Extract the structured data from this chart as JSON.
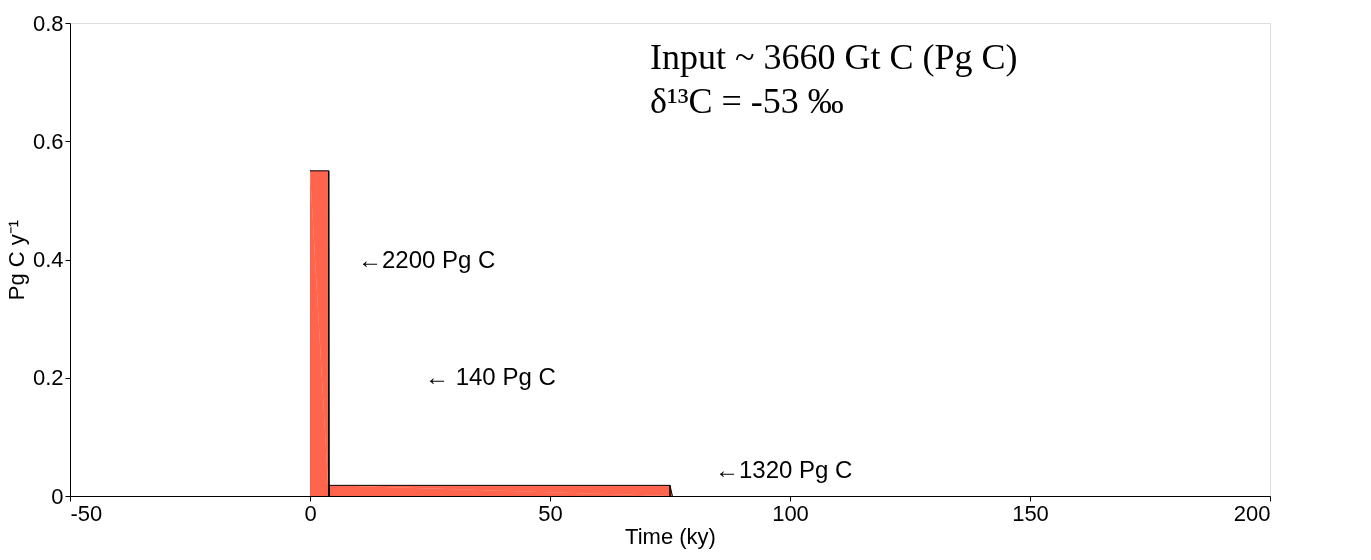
{
  "chart_data": {
    "type": "area",
    "xlabel": "Time (ky)",
    "ylabel": "Pg C y⁻¹",
    "x": [
      0,
      3.9,
      4,
      75,
      75.5
    ],
    "series": [
      {
        "color": "#ff2200",
        "values": [
          0.55,
          0.55,
          0.018,
          0.018,
          0
        ]
      }
    ],
    "xlim": [
      -50,
      200
    ],
    "xticks": [
      -50,
      0,
      50,
      100,
      150,
      200
    ],
    "ylim": [
      0,
      0.8
    ],
    "yticks": [
      0,
      0.2,
      0.4,
      0.6,
      0.8
    ],
    "grid": false,
    "annotations": [
      "Input ~ 3660 Gt C (Pg C)",
      "δ¹³C = -53 ‰",
      "←2200 Pg C",
      "← 140 Pg C",
      "←1320 Pg C"
    ]
  }
}
